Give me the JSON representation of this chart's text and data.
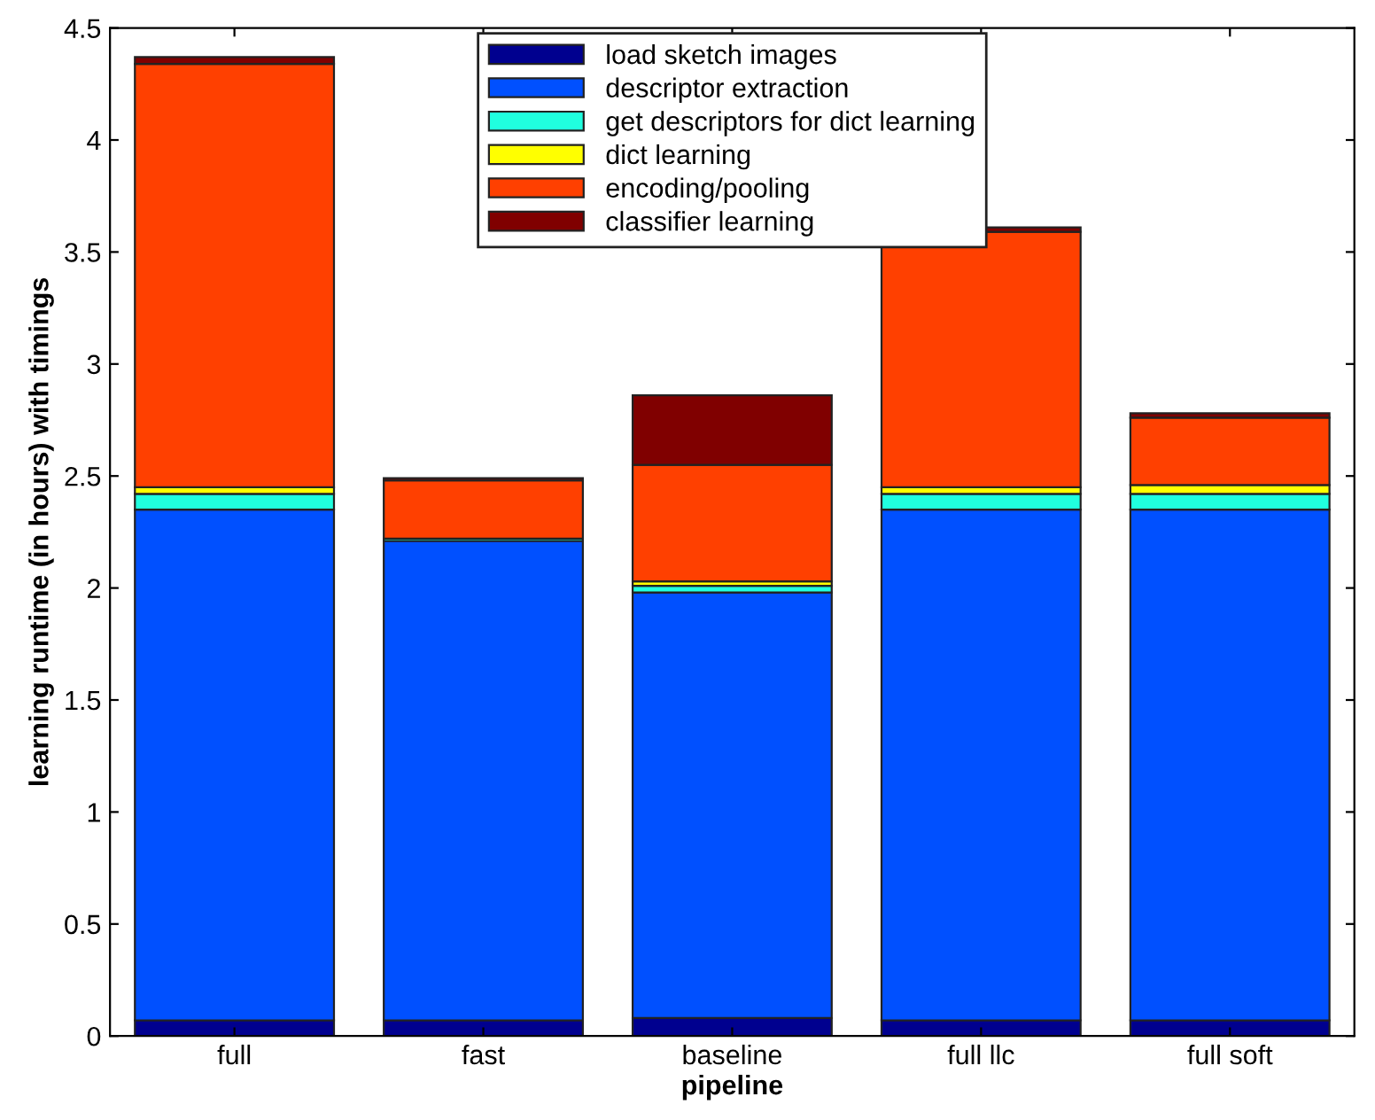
{
  "chart_data": {
    "type": "bar",
    "stacked": true,
    "xlabel": "pipeline",
    "ylabel": "learning runtime (in hours) with timings",
    "categories": [
      "full",
      "fast",
      "baseline",
      "full llc",
      "full soft"
    ],
    "series": [
      {
        "name": "load sketch images",
        "color": "#00008f",
        "values": [
          0.07,
          0.07,
          0.08,
          0.07,
          0.07
        ]
      },
      {
        "name": "descriptor extraction",
        "color": "#0050ff",
        "values": [
          2.28,
          2.14,
          1.9,
          2.28,
          2.28
        ]
      },
      {
        "name": "get descriptors for dict learning",
        "color": "#20ffdf",
        "values": [
          0.07,
          0.01,
          0.03,
          0.07,
          0.07
        ]
      },
      {
        "name": "dict learning",
        "color": "#ffff00",
        "values": [
          0.03,
          null,
          0.02,
          0.03,
          0.04
        ]
      },
      {
        "name": "encoding/pooling",
        "color": "#ff4000",
        "values": [
          1.89,
          0.26,
          0.52,
          1.14,
          0.3
        ]
      },
      {
        "name": "classifier learning",
        "color": "#800000",
        "values": [
          0.03,
          0.01,
          0.31,
          0.02,
          0.02
        ]
      }
    ],
    "ylim": [
      0,
      4.5
    ],
    "yticks": [
      0,
      0.5,
      1,
      1.5,
      2,
      2.5,
      3,
      3.5,
      4,
      4.5
    ],
    "grid": false,
    "legend": "top"
  }
}
